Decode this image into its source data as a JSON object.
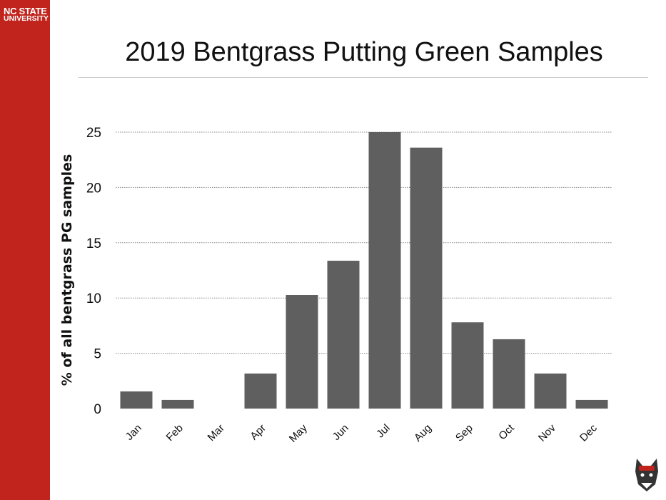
{
  "branding": {
    "line1": "NC STATE",
    "line2": "UNIVERSITY"
  },
  "chart_data": {
    "type": "bar",
    "title": "2019 Bentgrass Putting Green Samples",
    "xlabel": "",
    "ylabel": "% of all bentgrass PG samples",
    "categories": [
      "Jan",
      "Feb",
      "Mar",
      "Apr",
      "May",
      "Jun",
      "Jul",
      "Aug",
      "Sep",
      "Oct",
      "Nov",
      "Dec"
    ],
    "values": [
      1.55,
      0.78,
      0,
      3.17,
      10.27,
      13.37,
      25.0,
      23.6,
      7.8,
      6.27,
      3.17,
      0.78
    ],
    "ylim": [
      0,
      25
    ],
    "yticks": [
      0,
      5,
      10,
      15,
      20,
      25
    ],
    "grid": true,
    "bar_color": "#5f5f5f"
  }
}
